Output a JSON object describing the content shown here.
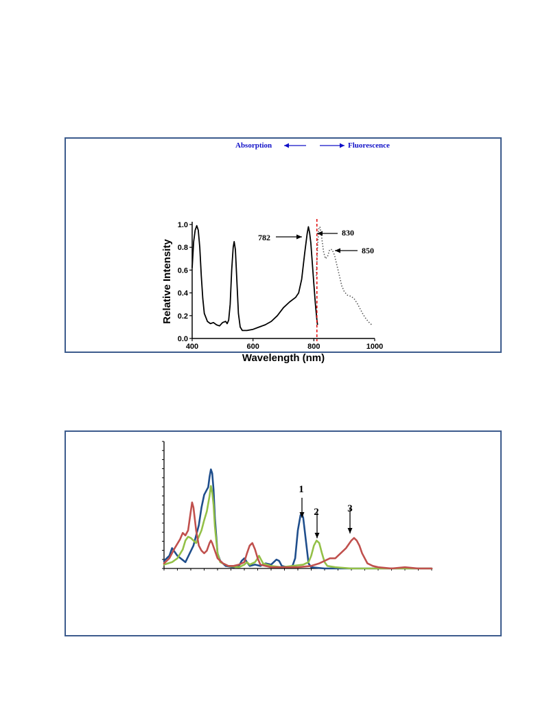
{
  "colors": {
    "border": "#3b5a8c",
    "direction_label": "#1010c8",
    "cutoff_line": "#e00000",
    "absorption": "#000000",
    "fluorescence": "#555555",
    "series_1": "#1f4e8c",
    "series_2": "#93c047",
    "series_3": "#c0504d"
  },
  "chart_data": [
    {
      "type": "line",
      "xlabel": "Wavelength (nm)",
      "ylabel": "Relative Intensity",
      "xlim": [
        400,
        1000
      ],
      "ylim": [
        0,
        1.0
      ],
      "x_ticks": [
        "400",
        "600",
        "800",
        "1000"
      ],
      "y_ticks": [
        "0.0",
        "0.2",
        "0.4",
        "0.6",
        "0.8",
        "1.0"
      ],
      "grid": false,
      "direction_labels": {
        "left": "Absorption",
        "right": "Fluorescence"
      },
      "cutoff_line_x": 810,
      "annotations": [
        {
          "text": "782",
          "x": 782,
          "y": 0.88
        },
        {
          "text": "830",
          "x": 830,
          "y": 0.93
        },
        {
          "text": "850",
          "x": 850,
          "y": 0.76
        }
      ],
      "series": [
        {
          "style": "solid",
          "points": [
            [
              400,
              0.62
            ],
            [
              405,
              0.85
            ],
            [
              410,
              0.95
            ],
            [
              415,
              0.99
            ],
            [
              420,
              0.95
            ],
            [
              425,
              0.8
            ],
            [
              430,
              0.55
            ],
            [
              435,
              0.35
            ],
            [
              440,
              0.22
            ],
            [
              450,
              0.15
            ],
            [
              460,
              0.13
            ],
            [
              470,
              0.14
            ],
            [
              480,
              0.12
            ],
            [
              490,
              0.11
            ],
            [
              500,
              0.14
            ],
            [
              510,
              0.15
            ],
            [
              515,
              0.13
            ],
            [
              520,
              0.16
            ],
            [
              525,
              0.3
            ],
            [
              530,
              0.6
            ],
            [
              535,
              0.8
            ],
            [
              538,
              0.85
            ],
            [
              542,
              0.78
            ],
            [
              548,
              0.45
            ],
            [
              552,
              0.22
            ],
            [
              558,
              0.1
            ],
            [
              565,
              0.07
            ],
            [
              580,
              0.07
            ],
            [
              600,
              0.08
            ],
            [
              620,
              0.1
            ],
            [
              640,
              0.12
            ],
            [
              660,
              0.15
            ],
            [
              680,
              0.2
            ],
            [
              700,
              0.27
            ],
            [
              720,
              0.32
            ],
            [
              740,
              0.36
            ],
            [
              750,
              0.4
            ],
            [
              760,
              0.52
            ],
            [
              770,
              0.75
            ],
            [
              778,
              0.92
            ],
            [
              782,
              0.98
            ],
            [
              786,
              0.93
            ],
            [
              790,
              0.84
            ],
            [
              795,
              0.66
            ],
            [
              800,
              0.48
            ],
            [
              805,
              0.3
            ],
            [
              810,
              0.16
            ],
            [
              812,
              0.12
            ]
          ]
        },
        {
          "style": "dotted",
          "points": [
            [
              808,
              0.55
            ],
            [
              812,
              0.8
            ],
            [
              816,
              0.96
            ],
            [
              820,
              0.98
            ],
            [
              826,
              0.88
            ],
            [
              832,
              0.76
            ],
            [
              838,
              0.7
            ],
            [
              845,
              0.72
            ],
            [
              852,
              0.78
            ],
            [
              860,
              0.78
            ],
            [
              868,
              0.73
            ],
            [
              876,
              0.64
            ],
            [
              884,
              0.55
            ],
            [
              892,
              0.46
            ],
            [
              900,
              0.41
            ],
            [
              910,
              0.38
            ],
            [
              922,
              0.37
            ],
            [
              932,
              0.35
            ],
            [
              942,
              0.31
            ],
            [
              952,
              0.26
            ],
            [
              962,
              0.21
            ],
            [
              972,
              0.17
            ],
            [
              982,
              0.14
            ],
            [
              990,
              0.12
            ]
          ]
        }
      ]
    },
    {
      "type": "line",
      "xlim": [
        0,
        100
      ],
      "ylim": [
        0,
        100
      ],
      "grid": false,
      "annotations": [
        {
          "text": "1",
          "x": 51.5,
          "y": 38
        },
        {
          "text": "2",
          "x": 57,
          "y": 22
        },
        {
          "text": "3",
          "x": 70,
          "y": 24
        }
      ],
      "series": [
        {
          "color_key": "series_1",
          "points": [
            [
              0,
              6
            ],
            [
              2,
              10
            ],
            [
              3,
              16
            ],
            [
              5,
              10
            ],
            [
              8,
              5
            ],
            [
              11,
              18
            ],
            [
              13,
              34
            ],
            [
              14,
              48
            ],
            [
              15,
              58
            ],
            [
              16,
              62
            ],
            [
              16.5,
              64
            ],
            [
              17,
              72
            ],
            [
              17.5,
              78
            ],
            [
              18,
              75
            ],
            [
              18.5,
              62
            ],
            [
              19,
              40
            ],
            [
              20,
              12
            ],
            [
              21,
              6
            ],
            [
              23,
              2
            ],
            [
              26,
              1
            ],
            [
              28,
              2
            ],
            [
              29,
              6
            ],
            [
              30,
              8
            ],
            [
              31,
              5
            ],
            [
              32,
              2
            ],
            [
              34,
              3
            ],
            [
              36,
              2
            ],
            [
              38,
              4
            ],
            [
              40,
              3
            ],
            [
              42,
              7
            ],
            [
              43,
              6
            ],
            [
              44,
              2
            ],
            [
              46,
              1
            ],
            [
              48,
              2
            ],
            [
              49,
              8
            ],
            [
              50,
              30
            ],
            [
              51,
              42
            ],
            [
              51.5,
              43
            ],
            [
              52,
              40
            ],
            [
              53,
              22
            ],
            [
              54,
              4
            ],
            [
              55,
              1
            ],
            [
              60,
              0
            ],
            [
              70,
              0
            ],
            [
              80,
              0
            ],
            [
              90,
              0
            ],
            [
              100,
              0
            ]
          ]
        },
        {
          "color_key": "series_2",
          "points": [
            [
              0,
              3
            ],
            [
              3,
              5
            ],
            [
              5,
              8
            ],
            [
              7,
              15
            ],
            [
              8,
              22
            ],
            [
              9,
              25
            ],
            [
              10,
              24
            ],
            [
              11,
              22
            ],
            [
              12,
              20
            ],
            [
              14,
              30
            ],
            [
              15,
              38
            ],
            [
              16,
              45
            ],
            [
              17,
              57
            ],
            [
              17.5,
              65
            ],
            [
              18,
              60
            ],
            [
              18.5,
              50
            ],
            [
              19,
              33
            ],
            [
              20,
              12
            ],
            [
              21,
              5
            ],
            [
              24,
              2
            ],
            [
              28,
              1
            ],
            [
              30,
              3
            ],
            [
              31,
              5
            ],
            [
              32,
              3
            ],
            [
              34,
              5
            ],
            [
              35,
              8
            ],
            [
              35.5,
              10
            ],
            [
              36,
              8
            ],
            [
              37,
              4
            ],
            [
              40,
              2
            ],
            [
              44,
              1
            ],
            [
              48,
              2
            ],
            [
              52,
              3
            ],
            [
              54,
              5
            ],
            [
              55,
              10
            ],
            [
              56,
              18
            ],
            [
              57,
              22
            ],
            [
              58,
              20
            ],
            [
              59,
              12
            ],
            [
              60,
              5
            ],
            [
              61,
              2
            ],
            [
              64,
              1
            ],
            [
              70,
              0
            ],
            [
              80,
              0
            ],
            [
              90,
              0
            ],
            [
              100,
              0
            ]
          ]
        },
        {
          "color_key": "series_3",
          "points": [
            [
              0,
              4
            ],
            [
              2,
              8
            ],
            [
              4,
              16
            ],
            [
              6,
              23
            ],
            [
              7,
              28
            ],
            [
              8,
              26
            ],
            [
              9,
              30
            ],
            [
              10,
              45
            ],
            [
              10.5,
              52
            ],
            [
              11,
              48
            ],
            [
              12,
              30
            ],
            [
              13,
              18
            ],
            [
              14,
              14
            ],
            [
              15,
              12
            ],
            [
              16,
              14
            ],
            [
              17,
              20
            ],
            [
              17.5,
              22
            ],
            [
              18,
              20
            ],
            [
              19,
              14
            ],
            [
              20,
              8
            ],
            [
              22,
              4
            ],
            [
              24,
              2
            ],
            [
              26,
              2
            ],
            [
              28,
              3
            ],
            [
              30,
              5
            ],
            [
              31,
              12
            ],
            [
              32,
              18
            ],
            [
              33,
              20
            ],
            [
              34,
              15
            ],
            [
              35,
              8
            ],
            [
              36,
              3
            ],
            [
              38,
              2
            ],
            [
              40,
              1
            ],
            [
              45,
              1
            ],
            [
              50,
              1
            ],
            [
              55,
              2
            ],
            [
              58,
              4
            ],
            [
              60,
              6
            ],
            [
              62,
              8
            ],
            [
              64,
              8
            ],
            [
              66,
              12
            ],
            [
              68,
              16
            ],
            [
              70,
              22
            ],
            [
              71,
              24
            ],
            [
              72,
              22
            ],
            [
              73,
              18
            ],
            [
              74,
              12
            ],
            [
              76,
              4
            ],
            [
              78,
              2
            ],
            [
              80,
              1
            ],
            [
              85,
              0
            ],
            [
              90,
              1
            ],
            [
              95,
              0
            ],
            [
              100,
              0
            ]
          ]
        }
      ]
    }
  ]
}
